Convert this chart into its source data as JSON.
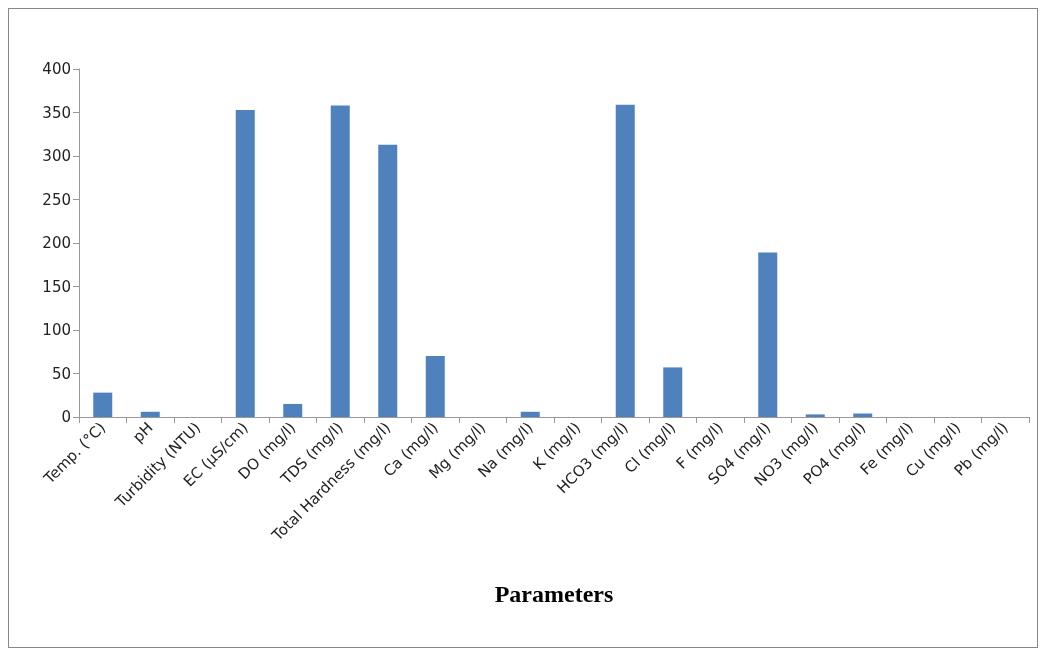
{
  "chart_data": {
    "type": "bar",
    "xlabel": "Parameters",
    "categories": [
      "Temp. (°C)",
      "pH",
      "Turbidity (NTU)",
      "EC (µS/cm)",
      "DO (mg/l)",
      "TDS (mg/l)",
      "Total Hardness (mg/l)",
      "Ca (mg/l)",
      "Mg (mg/l)",
      "Na (mg/l)",
      "K (mg/l)",
      "HCO3 (mg/l)",
      "Cl (mg/l)",
      "F (mg/l)",
      "SO4 (mg/l)",
      "NO3 (mg/l)",
      "PO4 (mg/l)",
      "Fe (mg/l)",
      "Cu (mg/l)",
      "Pb (mg/l)"
    ],
    "values": [
      28,
      6,
      0,
      353,
      15,
      358,
      313,
      70,
      0,
      6,
      0,
      359,
      57,
      0,
      189,
      3,
      4,
      0,
      0,
      0
    ],
    "color": "#4f81bd",
    "ylim": [
      0,
      400
    ],
    "yticks": [
      0,
      50,
      100,
      150,
      200,
      250,
      300,
      350,
      400
    ],
    "grid": false
  }
}
